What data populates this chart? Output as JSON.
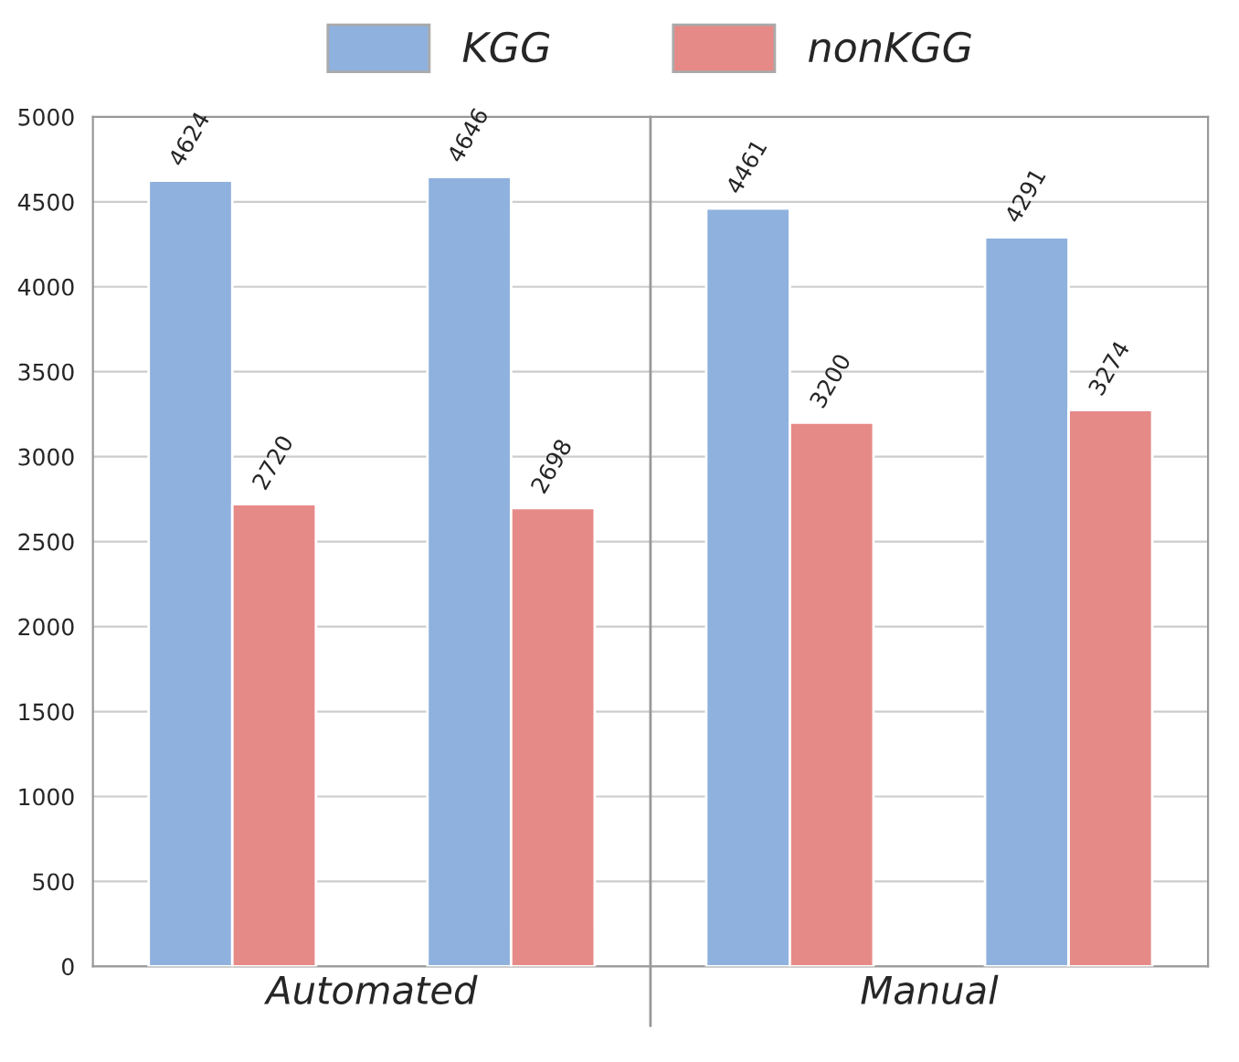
{
  "chart_data": {
    "type": "bar",
    "categories": [
      null,
      null,
      null,
      null
    ],
    "series": [
      {
        "name": "KGG",
        "color": "#8fb1de",
        "values": [
          4624,
          4646,
          4461,
          4291
        ]
      },
      {
        "name": "nonKGG",
        "color": "#e68a88",
        "values": [
          2720,
          2698,
          3200,
          3274
        ]
      }
    ],
    "data_labels": true,
    "ylim": [
      0,
      5000
    ],
    "yticks": [
      0,
      500,
      1000,
      1500,
      2000,
      2500,
      3000,
      3500,
      4000,
      4500,
      5000
    ],
    "grid": "y",
    "legend": "top",
    "annotations": [
      "Automated",
      "Manual"
    ]
  }
}
